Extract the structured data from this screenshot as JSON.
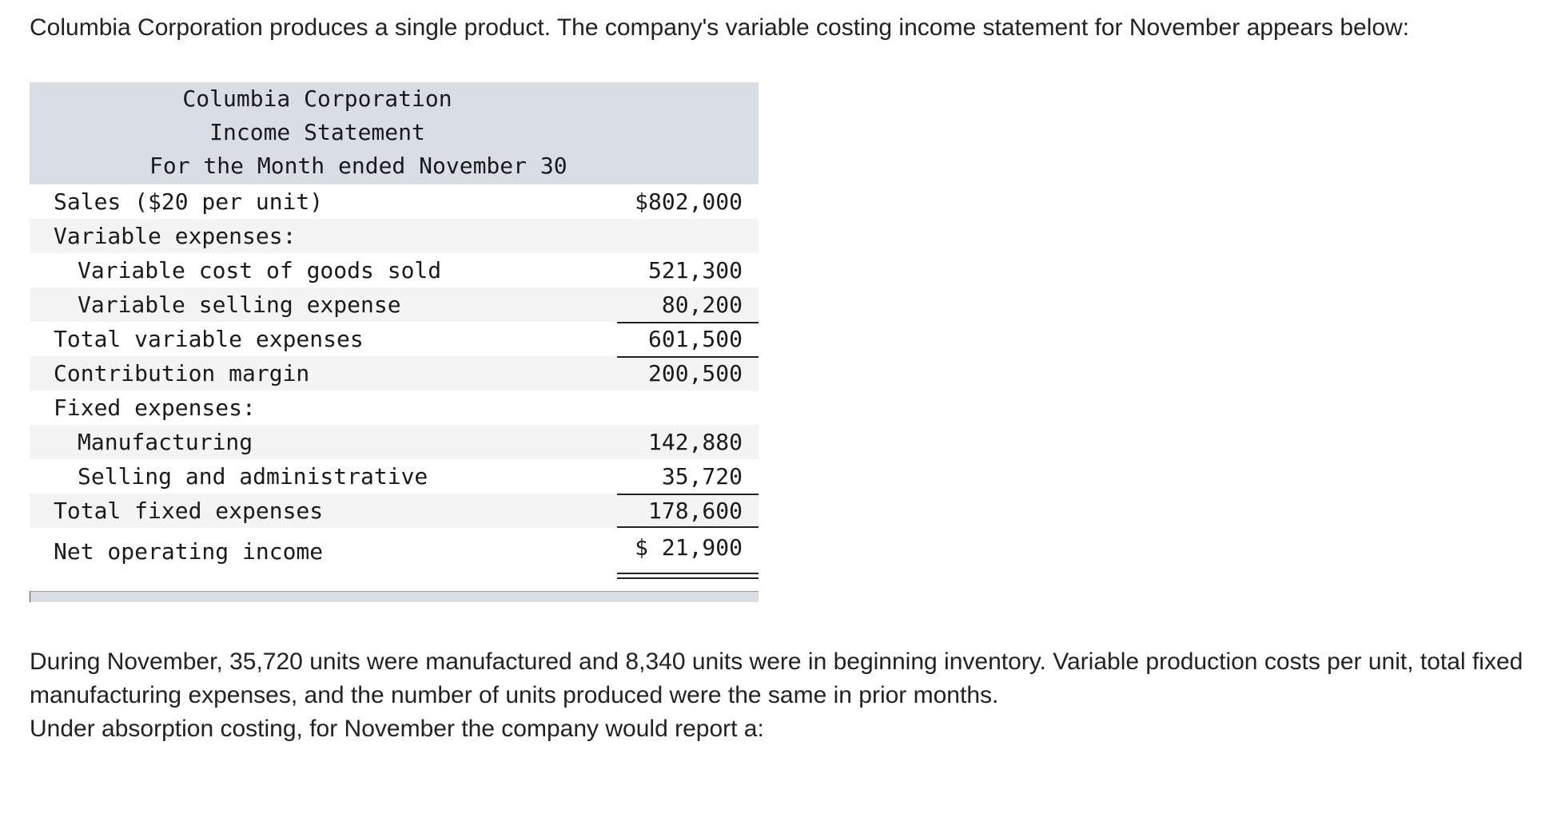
{
  "intro": "Columbia Corporation produces a single product. The company's variable costing income statement for November appears below:",
  "statement": {
    "company": "Columbia Corporation",
    "title": "Income Statement",
    "period": "For the Month ended November 30",
    "rows": [
      {
        "label": "Sales ($20 per unit)",
        "amount": "$802,000"
      },
      {
        "label": "Variable expenses:",
        "amount": ""
      },
      {
        "label": "Variable cost of goods sold",
        "amount": "521,300"
      },
      {
        "label": "Variable selling expense",
        "amount": "80,200"
      },
      {
        "label": "Total variable expenses",
        "amount": "601,500"
      },
      {
        "label": "Contribution margin",
        "amount": "200,500"
      },
      {
        "label": "Fixed expenses:",
        "amount": ""
      },
      {
        "label": "Manufacturing",
        "amount": "142,880"
      },
      {
        "label": "Selling and administrative",
        "amount": "35,720"
      },
      {
        "label": "Total fixed expenses",
        "amount": "178,600"
      },
      {
        "label": "Net operating income",
        "amount": "$ 21,900"
      }
    ]
  },
  "scenario": "During November, 35,720 units were manufactured and 8,340 units were in beginning inventory. Variable production costs per unit, total fixed manufacturing expenses, and the number of units produced were the same in prior months.",
  "question": "Under absorption costing, for November the company would report a:"
}
